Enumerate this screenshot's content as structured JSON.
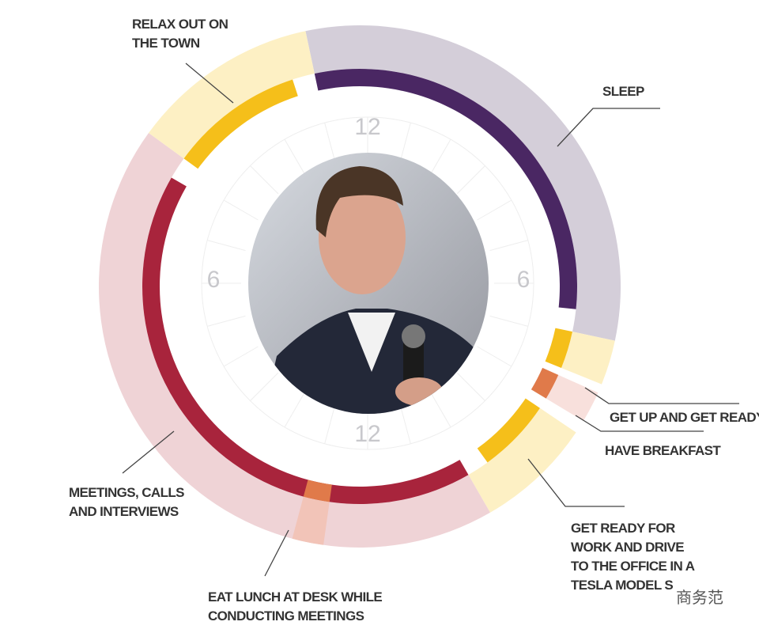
{
  "dial": {
    "top": "12",
    "right": "6",
    "bottom": "12",
    "left": "6"
  },
  "labels": {
    "relax": [
      "RELAX OUT ON",
      "THE TOWN"
    ],
    "sleep": [
      "SLEEP"
    ],
    "get_up": [
      "GET UP AND GET READY"
    ],
    "breakfast": [
      "HAVE BREAKFAST"
    ],
    "drive": [
      "GET READY FOR",
      "WORK AND DRIVE",
      "TO THE OFFICE IN A",
      "TESLA MODEL S"
    ],
    "meetings": [
      "MEETINGS, CALLS",
      "AND INTERVIEWS"
    ],
    "lunch": [
      "EAT LUNCH AT DESK WHILE",
      "CONDUCTING MEETINGS"
    ]
  },
  "watermark": "商务范"
}
